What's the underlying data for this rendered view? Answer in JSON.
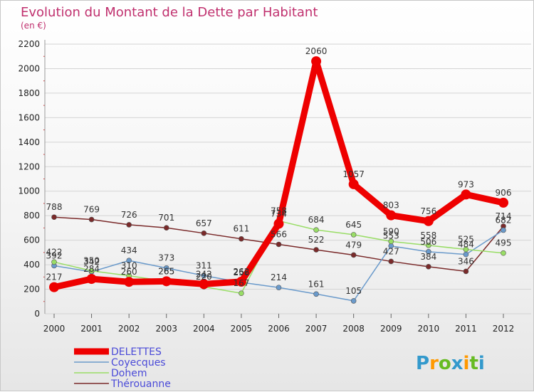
{
  "chart_data": {
    "type": "line",
    "title": "Evolution du Montant de la Dette par Habitant",
    "subtitle": "(en €)",
    "xlabel": "",
    "ylabel": "",
    "ylim": [
      0,
      2200
    ],
    "yticks": [
      0,
      200,
      400,
      600,
      800,
      1000,
      1200,
      1400,
      1600,
      1800,
      2000,
      2200
    ],
    "categories": [
      "2000",
      "2001",
      "2002",
      "2003",
      "2004",
      "2005",
      "2006",
      "2007",
      "2008",
      "2009",
      "2010",
      "2011",
      "2012"
    ],
    "legend_position": "bottom-left",
    "series": [
      {
        "name": "Thérouanne",
        "color": "#7a2a2a",
        "values": [
          788,
          769,
          726,
          701,
          657,
          611,
          566,
          522,
          479,
          427,
          384,
          346,
          714
        ]
      },
      {
        "name": "Coyecques",
        "color": "#6a9acb",
        "values": [
          392,
          342,
          434,
          373,
          311,
          256,
          214,
          161,
          105,
          553,
          506,
          484,
          682
        ]
      },
      {
        "name": "Dohem",
        "color": "#99dd66",
        "values": [
          422,
          350,
          310,
          265,
          220,
          167,
          758,
          684,
          645,
          590,
          558,
          525,
          495
        ]
      },
      {
        "name": "DELETTES",
        "color": "#ee0000",
        "values": [
          217,
          284,
          260,
          265,
          242,
          262,
          734,
          2060,
          1057,
          803,
          756,
          973,
          906
        ]
      }
    ]
  },
  "logo": {
    "text": "Proxiti",
    "colors": [
      "#3399cc",
      "#ff9900",
      "#66bb22",
      "#3399cc",
      "#ff9900",
      "#66bb22",
      "#3399cc"
    ]
  }
}
